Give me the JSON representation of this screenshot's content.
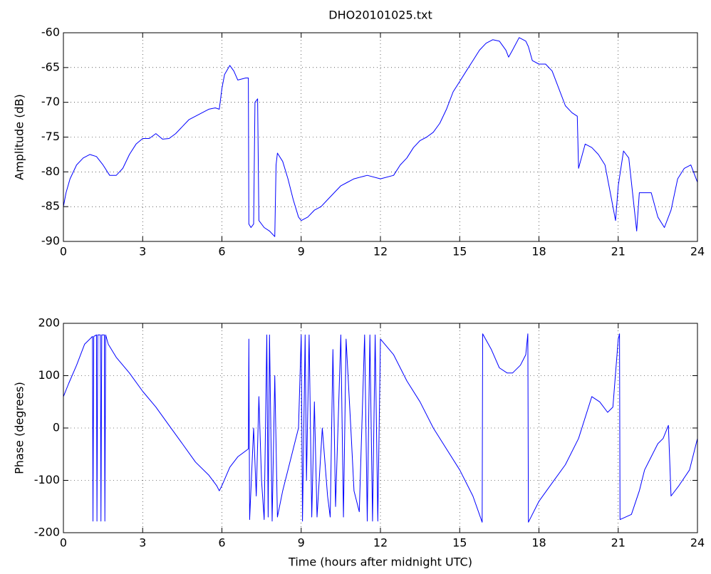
{
  "chart_data": [
    {
      "type": "line",
      "title": "DHO20101025.txt",
      "ylabel": "Amplitude (dB)",
      "x": [
        0,
        0.1,
        0.25,
        0.5,
        0.75,
        1,
        1.25,
        1.5,
        1.75,
        2,
        2.25,
        2.5,
        2.75,
        3,
        3.25,
        3.5,
        3.75,
        4,
        4.25,
        4.5,
        4.75,
        5,
        5.25,
        5.5,
        5.75,
        5.9,
        6,
        6.1,
        6.3,
        6.45,
        6.6,
        6.9,
        7.0,
        7.02,
        7.1,
        7.2,
        7.25,
        7.35,
        7.4,
        7.6,
        7.8,
        8.0,
        8.05,
        8.1,
        8.3,
        8.5,
        8.7,
        8.9,
        9,
        9.25,
        9.5,
        9.75,
        10,
        10.25,
        10.5,
        10.75,
        11,
        11.5,
        12,
        12.5,
        12.75,
        13,
        13.25,
        13.5,
        13.75,
        14,
        14.25,
        14.5,
        14.75,
        15,
        15.25,
        15.5,
        15.75,
        16,
        16.25,
        16.5,
        16.75,
        16.85,
        17,
        17.25,
        17.5,
        17.6,
        17.75,
        18,
        18.25,
        18.5,
        18.75,
        19,
        19.25,
        19.45,
        19.5,
        19.75,
        20,
        20.25,
        20.5,
        20.75,
        20.9,
        21,
        21.2,
        21.4,
        21.6,
        21.7,
        21.8,
        22,
        22.25,
        22.5,
        22.75,
        23,
        23.25,
        23.5,
        23.75,
        24
      ],
      "series": [
        {
          "color": "#0000ff",
          "values": [
            -85,
            -83,
            -81,
            -79,
            -78,
            -77.5,
            -77.8,
            -79,
            -80.5,
            -80.5,
            -79.5,
            -77.5,
            -76,
            -75.2,
            -75.2,
            -74.5,
            -75.3,
            -75.2,
            -74.5,
            -73.5,
            -72.5,
            -72,
            -71.5,
            -71,
            -70.8,
            -71,
            -68,
            -66,
            -64.7,
            -65.5,
            -66.8,
            -66.5,
            -66.5,
            -87.5,
            -88,
            -87.5,
            -70,
            -69.5,
            -87,
            -88,
            -88.5,
            -89.3,
            -79,
            -77.3,
            -78.5,
            -81,
            -84,
            -86.5,
            -87,
            -86.5,
            -85.5,
            -85,
            -84,
            -83,
            -82,
            -81.5,
            -81,
            -80.5,
            -81,
            -80.5,
            -79,
            -78,
            -76.5,
            -75.5,
            -75,
            -74.3,
            -73,
            -71,
            -68.5,
            -67,
            -65.5,
            -64,
            -62.5,
            -61.5,
            -61,
            -61.2,
            -62.5,
            -63.5,
            -62.5,
            -60.7,
            -61.2,
            -62,
            -64,
            -64.5,
            -64.5,
            -65.5,
            -68,
            -70.5,
            -71.5,
            -72,
            -79.5,
            -76,
            -76.5,
            -77.5,
            -79,
            -84,
            -87,
            -82,
            -77,
            -78,
            -85,
            -88.5,
            -83,
            -83,
            -83,
            -86.5,
            -88,
            -85.5,
            -81,
            -79.5,
            -79,
            -81.5
          ]
        }
      ],
      "xlim": [
        0,
        24
      ],
      "ylim": [
        -90,
        -60
      ],
      "xticks": [
        0,
        3,
        6,
        9,
        12,
        15,
        18,
        21,
        24
      ],
      "yticks": [
        -90,
        -85,
        -80,
        -75,
        -70,
        -65,
        -60
      ],
      "grid": true
    },
    {
      "type": "line",
      "xlabel": "Time (hours after midnight UTC)",
      "ylabel": "Phase (degrees)",
      "x": [
        0,
        0.2,
        0.5,
        0.8,
        1,
        1.1,
        1.12,
        1.15,
        1.25,
        1.27,
        1.3,
        1.4,
        1.42,
        1.45,
        1.55,
        1.57,
        1.6,
        1.7,
        2,
        2.5,
        3,
        3.5,
        4,
        4.5,
        5,
        5.5,
        5.8,
        5.9,
        6,
        6.3,
        6.6,
        7,
        7.02,
        7.05,
        7.2,
        7.3,
        7.4,
        7.5,
        7.6,
        7.7,
        7.75,
        7.8,
        7.9,
        8,
        8.1,
        8.3,
        8.6,
        8.9,
        9,
        9.05,
        9.15,
        9.2,
        9.3,
        9.4,
        9.5,
        9.6,
        9.8,
        10,
        10.1,
        10.2,
        10.3,
        10.5,
        10.6,
        10.7,
        10.9,
        11,
        11.2,
        11.4,
        11.5,
        11.6,
        11.7,
        11.8,
        11.9,
        12,
        12.5,
        13,
        13.5,
        14,
        14.5,
        15,
        15.5,
        15.85,
        15.87,
        16.2,
        16.5,
        16.8,
        17,
        17.3,
        17.5,
        17.58,
        17.6,
        18,
        18.5,
        19,
        19.5,
        20,
        20.3,
        20.6,
        20.8,
        21,
        21.05,
        21.07,
        21.5,
        21.8,
        22,
        22.2,
        22.5,
        22.7,
        22.9,
        23,
        23.3,
        23.7,
        24
      ],
      "series": [
        {
          "color": "#0000ff",
          "values": [
            60,
            85,
            120,
            160,
            170,
            175,
            -178,
            175,
            178,
            -178,
            178,
            178,
            -178,
            178,
            178,
            -178,
            178,
            160,
            135,
            105,
            70,
            40,
            5,
            -30,
            -65,
            -90,
            -110,
            -120,
            -110,
            -75,
            -55,
            -40,
            170,
            -175,
            0,
            -130,
            60,
            -100,
            -175,
            178,
            -170,
            178,
            -178,
            100,
            -170,
            -120,
            -60,
            0,
            178,
            -178,
            178,
            -100,
            178,
            -170,
            50,
            -170,
            0,
            -130,
            -170,
            150,
            -150,
            178,
            -170,
            170,
            -20,
            -120,
            -160,
            178,
            -178,
            178,
            -178,
            178,
            -178,
            170,
            140,
            90,
            50,
            0,
            -40,
            -80,
            -130,
            -180,
            180,
            150,
            115,
            105,
            105,
            120,
            140,
            180,
            -180,
            -140,
            -105,
            -70,
            -20,
            60,
            50,
            30,
            40,
            170,
            180,
            -175,
            -165,
            -120,
            -80,
            -60,
            -30,
            -20,
            5,
            -130,
            -110,
            -80,
            -20
          ]
        }
      ],
      "xlim": [
        0,
        24
      ],
      "ylim": [
        -200,
        200
      ],
      "xticks": [
        0,
        3,
        6,
        9,
        12,
        15,
        18,
        21,
        24
      ],
      "yticks": [
        -200,
        -100,
        0,
        100,
        200
      ],
      "grid": true
    }
  ]
}
